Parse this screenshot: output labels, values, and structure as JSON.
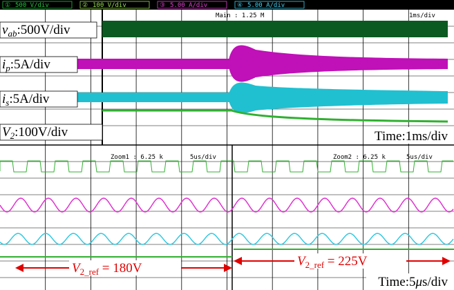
{
  "header": {
    "channels": [
      {
        "number": "①",
        "scale": "500 V/div"
      },
      {
        "number": "②",
        "scale": "100 V/div"
      },
      {
        "number": "③",
        "scale": "5.00 A/div"
      },
      {
        "number": "④",
        "scale": "5.00 A/div"
      }
    ]
  },
  "main": {
    "timebase": "Main : 1.25 M",
    "scale": "1ms/div"
  },
  "zooms": [
    {
      "label": "Zoom1 : 6.25 k",
      "scale": "5us/div"
    },
    {
      "label": "Zoom2 : 6.25 k",
      "scale": "5us/div"
    }
  ],
  "traces": [
    {
      "symbol": "v",
      "subscript": "ab",
      "scale": ":500V/div"
    },
    {
      "symbol": "i",
      "subscript": "p",
      "scale": ":5A/div"
    },
    {
      "symbol": "i",
      "subscript": "s",
      "scale": ":5A/div"
    },
    {
      "symbol": "V",
      "subscript": "2",
      "scale": ":100V/div"
    }
  ],
  "time_labels": [
    "Time:1ms/div",
    {
      "prefix": "Time:5",
      "mu": "μ",
      "suffix": "s/div"
    }
  ],
  "references": [
    {
      "symbol": "V",
      "subscript": "2_ref",
      "text": " = 180V"
    },
    {
      "symbol": "V",
      "subscript": "2_ref",
      "text": " = 225V"
    }
  ]
}
